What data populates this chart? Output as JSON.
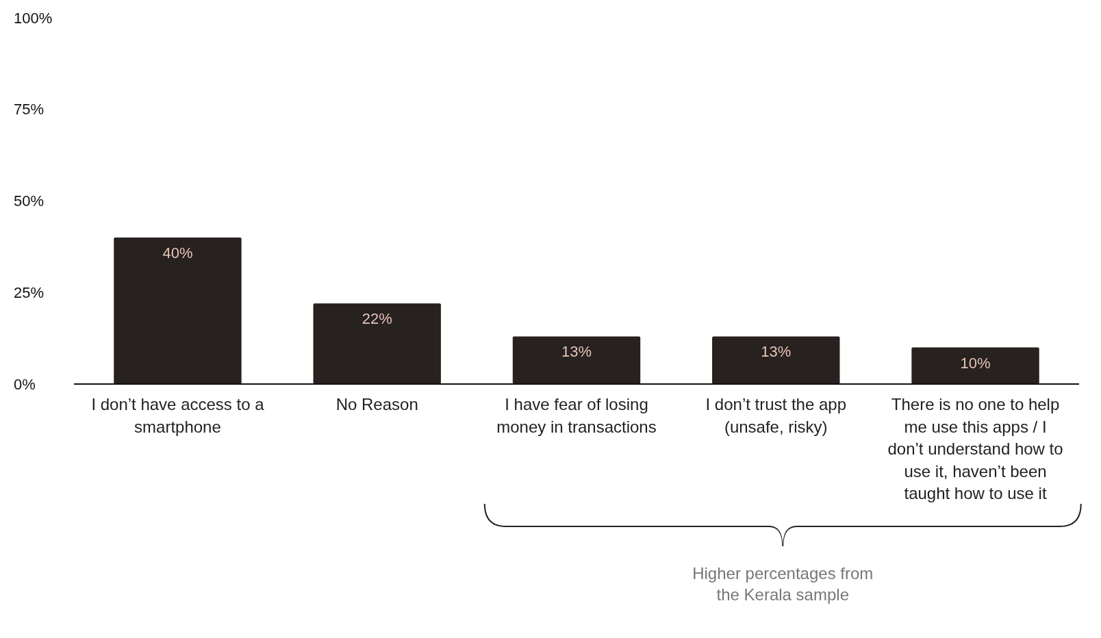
{
  "chart_data": {
    "type": "bar",
    "categories": [
      "I don’t have access to a smartphone",
      "No Reason",
      "I have fear of losing money in transactions",
      "I don’t trust the app (unsafe, risky)",
      "There is no one to help me use this apps / I don’t understand how to use it, haven’t been taught how to use it"
    ],
    "values": [
      40,
      22,
      13,
      13,
      10
    ],
    "value_labels": [
      "40%",
      "22%",
      "13%",
      "13%",
      "10%"
    ],
    "color": "#272120",
    "ylim": [
      0,
      100
    ],
    "yticks": [
      {
        "value": 0,
        "label": "0%"
      },
      {
        "value": 25,
        "label": "25%"
      },
      {
        "value": 50,
        "label": "50%"
      },
      {
        "value": 75,
        "label": "75%"
      },
      {
        "value": 100,
        "label": "100%"
      }
    ],
    "grid": false,
    "annotations": [
      "Higher percentages from the Kerala sample"
    ]
  }
}
